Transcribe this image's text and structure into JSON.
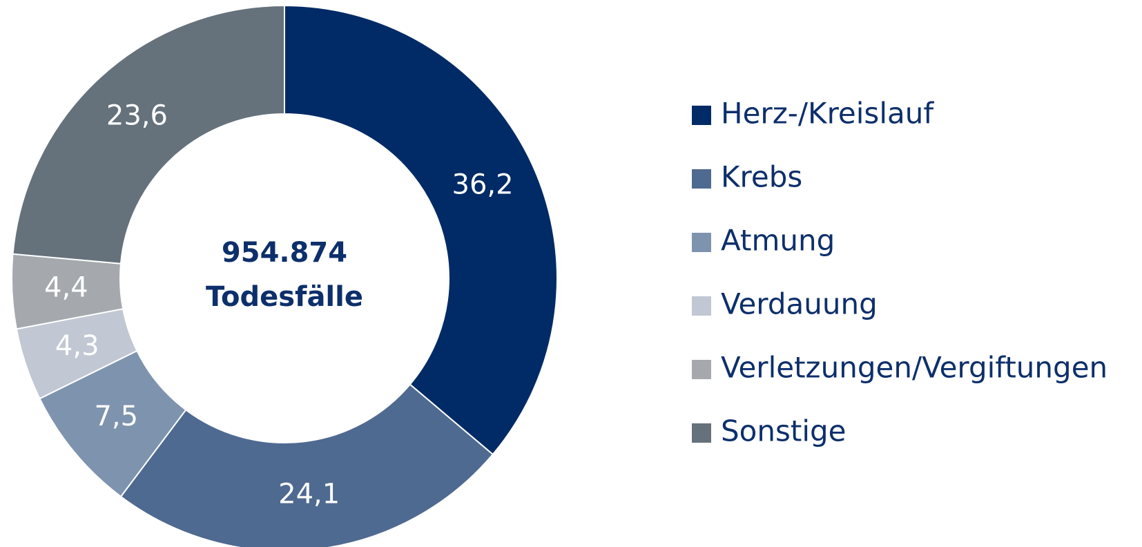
{
  "chart_data": {
    "type": "donut",
    "center_label": [
      "954.874",
      "Todesfälle"
    ],
    "categories": [
      "Herz-/Kreislauf",
      "Krebs",
      "Atmung",
      "Verdauung",
      "Verletzungen/Vergiftungen",
      "Sonstige"
    ],
    "values": [
      36.2,
      24.1,
      7.5,
      4.3,
      4.4,
      23.6
    ],
    "value_labels": [
      "36,2",
      "24,1",
      "7,5",
      "4,3",
      "4,4",
      "23,6"
    ],
    "colors": [
      "#002b66",
      "#4f6a90",
      "#7e93ae",
      "#c1c7d3",
      "#a5a9ae",
      "#65717b"
    ],
    "legend": "right"
  }
}
